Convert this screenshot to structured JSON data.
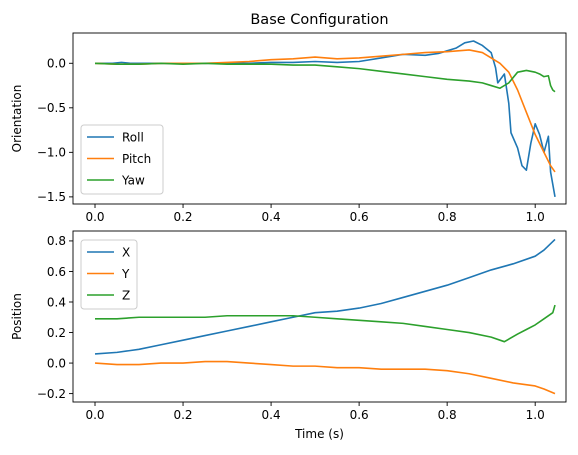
{
  "chart_data": [
    {
      "type": "line",
      "title": "Base Configuration",
      "xlabel": "",
      "ylabel": "Orientation",
      "xlim": [
        -0.05,
        1.07
      ],
      "ylim": [
        -1.58,
        0.34
      ],
      "xticks": [
        "0.0",
        "0.2",
        "0.4",
        "0.6",
        "0.8",
        "1.0"
      ],
      "xtick_values": [
        0,
        0.2,
        0.4,
        0.6,
        0.8,
        1.0
      ],
      "yticks": [
        "0.0",
        "−0.5",
        "−1.0",
        "−1.5"
      ],
      "ytick_values": [
        0,
        -0.5,
        -1.0,
        -1.5
      ],
      "grid": false,
      "legend": "lower-left",
      "series": [
        {
          "name": "Roll",
          "color": "#1f77b4",
          "points": [
            [
              0,
              0
            ],
            [
              0.04,
              0
            ],
            [
              0.06,
              0.01
            ],
            [
              0.08,
              0
            ],
            [
              0.15,
              0
            ],
            [
              0.2,
              0
            ],
            [
              0.25,
              0
            ],
            [
              0.3,
              0
            ],
            [
              0.35,
              0
            ],
            [
              0.4,
              0.01
            ],
            [
              0.45,
              0.01
            ],
            [
              0.5,
              0.02
            ],
            [
              0.55,
              0.01
            ],
            [
              0.6,
              0.02
            ],
            [
              0.65,
              0.06
            ],
            [
              0.7,
              0.1
            ],
            [
              0.75,
              0.09
            ],
            [
              0.78,
              0.11
            ],
            [
              0.8,
              0.14
            ],
            [
              0.82,
              0.17
            ],
            [
              0.84,
              0.23
            ],
            [
              0.86,
              0.25
            ],
            [
              0.88,
              0.2
            ],
            [
              0.9,
              0.12
            ],
            [
              0.91,
              -0.05
            ],
            [
              0.915,
              -0.22
            ],
            [
              0.93,
              -0.12
            ],
            [
              0.94,
              -0.45
            ],
            [
              0.945,
              -0.78
            ],
            [
              0.96,
              -0.95
            ],
            [
              0.97,
              -1.15
            ],
            [
              0.98,
              -1.2
            ],
            [
              0.99,
              -0.9
            ],
            [
              1.0,
              -0.68
            ],
            [
              1.01,
              -0.8
            ],
            [
              1.02,
              -1.0
            ],
            [
              1.03,
              -0.82
            ],
            [
              1.035,
              -1.22
            ],
            [
              1.045,
              -1.5
            ]
          ]
        },
        {
          "name": "Pitch",
          "color": "#ff7f0e",
          "points": [
            [
              0,
              0
            ],
            [
              0.05,
              -0.01
            ],
            [
              0.1,
              -0.01
            ],
            [
              0.15,
              0
            ],
            [
              0.2,
              0
            ],
            [
              0.25,
              0
            ],
            [
              0.3,
              0.01
            ],
            [
              0.35,
              0.02
            ],
            [
              0.4,
              0.04
            ],
            [
              0.45,
              0.05
            ],
            [
              0.5,
              0.07
            ],
            [
              0.55,
              0.05
            ],
            [
              0.6,
              0.06
            ],
            [
              0.65,
              0.08
            ],
            [
              0.7,
              0.1
            ],
            [
              0.75,
              0.12
            ],
            [
              0.8,
              0.13
            ],
            [
              0.85,
              0.15
            ],
            [
              0.88,
              0.12
            ],
            [
              0.9,
              0.06
            ],
            [
              0.92,
              0
            ],
            [
              0.94,
              -0.1
            ],
            [
              0.96,
              -0.3
            ],
            [
              0.98,
              -0.55
            ],
            [
              1.0,
              -0.8
            ],
            [
              1.02,
              -1.0
            ],
            [
              1.035,
              -1.15
            ],
            [
              1.045,
              -1.22
            ]
          ]
        },
        {
          "name": "Yaw",
          "color": "#2ca02c",
          "points": [
            [
              0,
              0
            ],
            [
              0.05,
              -0.01
            ],
            [
              0.1,
              -0.01
            ],
            [
              0.15,
              0
            ],
            [
              0.2,
              -0.01
            ],
            [
              0.25,
              0
            ],
            [
              0.3,
              -0.01
            ],
            [
              0.35,
              -0.01
            ],
            [
              0.4,
              -0.01
            ],
            [
              0.45,
              -0.02
            ],
            [
              0.5,
              -0.02
            ],
            [
              0.55,
              -0.04
            ],
            [
              0.6,
              -0.06
            ],
            [
              0.65,
              -0.09
            ],
            [
              0.7,
              -0.12
            ],
            [
              0.75,
              -0.15
            ],
            [
              0.8,
              -0.18
            ],
            [
              0.85,
              -0.2
            ],
            [
              0.88,
              -0.22
            ],
            [
              0.9,
              -0.25
            ],
            [
              0.92,
              -0.28
            ],
            [
              0.94,
              -0.22
            ],
            [
              0.96,
              -0.1
            ],
            [
              0.98,
              -0.08
            ],
            [
              1.0,
              -0.1
            ],
            [
              1.01,
              -0.12
            ],
            [
              1.02,
              -0.15
            ],
            [
              1.03,
              -0.14
            ],
            [
              1.035,
              -0.25
            ],
            [
              1.04,
              -0.3
            ],
            [
              1.045,
              -0.32
            ]
          ]
        }
      ]
    },
    {
      "type": "line",
      "title": "",
      "xlabel": "Time (s)",
      "ylabel": "Position",
      "xlim": [
        -0.05,
        1.07
      ],
      "ylim": [
        -0.255,
        0.865
      ],
      "xticks": [
        "0.0",
        "0.2",
        "0.4",
        "0.6",
        "0.8",
        "1.0"
      ],
      "xtick_values": [
        0,
        0.2,
        0.4,
        0.6,
        0.8,
        1.0
      ],
      "yticks": [
        "−0.2",
        "0.0",
        "0.2",
        "0.4",
        "0.6",
        "0.8"
      ],
      "ytick_values": [
        -0.2,
        0,
        0.2,
        0.4,
        0.6,
        0.8
      ],
      "grid": false,
      "legend": "top-left",
      "series": [
        {
          "name": "X",
          "color": "#1f77b4",
          "points": [
            [
              0,
              0.06
            ],
            [
              0.05,
              0.07
            ],
            [
              0.1,
              0.09
            ],
            [
              0.15,
              0.12
            ],
            [
              0.2,
              0.15
            ],
            [
              0.25,
              0.18
            ],
            [
              0.3,
              0.21
            ],
            [
              0.35,
              0.24
            ],
            [
              0.4,
              0.27
            ],
            [
              0.45,
              0.3
            ],
            [
              0.5,
              0.33
            ],
            [
              0.55,
              0.34
            ],
            [
              0.6,
              0.36
            ],
            [
              0.65,
              0.39
            ],
            [
              0.7,
              0.43
            ],
            [
              0.75,
              0.47
            ],
            [
              0.8,
              0.51
            ],
            [
              0.85,
              0.56
            ],
            [
              0.9,
              0.61
            ],
            [
              0.95,
              0.65
            ],
            [
              1.0,
              0.7
            ],
            [
              1.02,
              0.74
            ],
            [
              1.045,
              0.81
            ]
          ]
        },
        {
          "name": "Y",
          "color": "#ff7f0e",
          "points": [
            [
              0,
              0
            ],
            [
              0.05,
              -0.01
            ],
            [
              0.1,
              -0.01
            ],
            [
              0.15,
              0
            ],
            [
              0.2,
              0
            ],
            [
              0.25,
              0.01
            ],
            [
              0.3,
              0.01
            ],
            [
              0.35,
              0
            ],
            [
              0.4,
              -0.01
            ],
            [
              0.45,
              -0.02
            ],
            [
              0.5,
              -0.02
            ],
            [
              0.55,
              -0.03
            ],
            [
              0.6,
              -0.03
            ],
            [
              0.65,
              -0.04
            ],
            [
              0.7,
              -0.04
            ],
            [
              0.75,
              -0.04
            ],
            [
              0.8,
              -0.05
            ],
            [
              0.85,
              -0.07
            ],
            [
              0.9,
              -0.1
            ],
            [
              0.95,
              -0.13
            ],
            [
              1.0,
              -0.15
            ],
            [
              1.02,
              -0.17
            ],
            [
              1.045,
              -0.2
            ]
          ]
        },
        {
          "name": "Z",
          "color": "#2ca02c",
          "points": [
            [
              0,
              0.29
            ],
            [
              0.05,
              0.29
            ],
            [
              0.1,
              0.3
            ],
            [
              0.15,
              0.3
            ],
            [
              0.2,
              0.3
            ],
            [
              0.25,
              0.3
            ],
            [
              0.3,
              0.31
            ],
            [
              0.35,
              0.31
            ],
            [
              0.4,
              0.31
            ],
            [
              0.45,
              0.31
            ],
            [
              0.5,
              0.3
            ],
            [
              0.55,
              0.29
            ],
            [
              0.6,
              0.28
            ],
            [
              0.65,
              0.27
            ],
            [
              0.7,
              0.26
            ],
            [
              0.75,
              0.24
            ],
            [
              0.8,
              0.22
            ],
            [
              0.85,
              0.2
            ],
            [
              0.9,
              0.17
            ],
            [
              0.93,
              0.14
            ],
            [
              0.96,
              0.19
            ],
            [
              0.98,
              0.22
            ],
            [
              1.0,
              0.25
            ],
            [
              1.02,
              0.29
            ],
            [
              1.04,
              0.33
            ],
            [
              1.045,
              0.38
            ]
          ]
        }
      ]
    }
  ]
}
